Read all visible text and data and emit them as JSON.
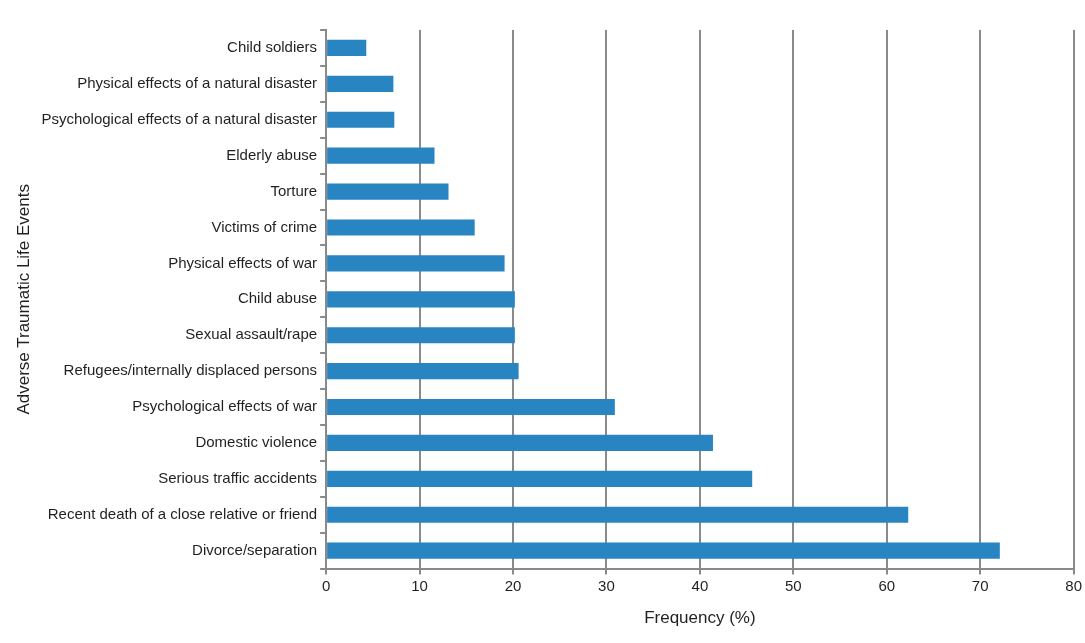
{
  "chart_data": {
    "type": "bar",
    "orientation": "horizontal",
    "xlabel": "Frequency (%)",
    "ylabel": "Adverse Traumatic Life Events",
    "categories": [
      "Child soldiers",
      "Physical effects of a natural disaster",
      "Psychological effects of a natural disaster",
      "Elderly abuse",
      "Torture",
      "Victims of crime",
      "Physical effects of war",
      "Child abuse",
      "Sexual assault/rape",
      "Refugees/internally displaced persons",
      "Psychological effects of war",
      "Domestic violence",
      "Serious traffic accidents",
      "Recent death of a close relative or friend",
      "Divorce/separation"
    ],
    "values": [
      4.3,
      7.2,
      7.3,
      11.6,
      13.1,
      15.9,
      19.1,
      20.2,
      20.2,
      20.6,
      30.9,
      41.4,
      45.6,
      62.3,
      72.1
    ],
    "color": "#2985c2",
    "xlim": [
      0,
      80
    ],
    "xticks": [
      0,
      10,
      20,
      30,
      40,
      50,
      60,
      70,
      80
    ],
    "grid": "x",
    "legend": false
  }
}
